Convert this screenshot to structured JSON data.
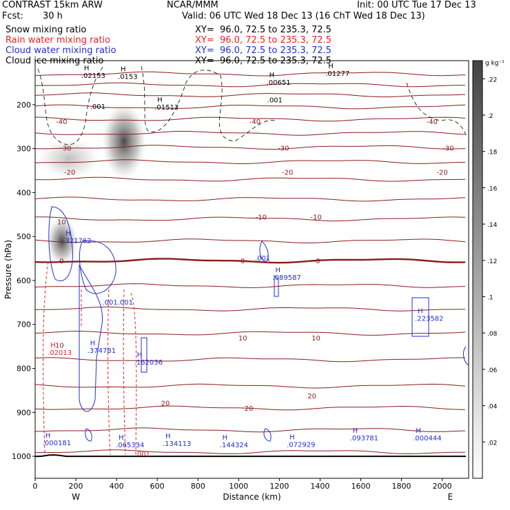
{
  "header": {
    "title": "CONTRAST 15km ARW",
    "center": "NCAR/MMM",
    "init": "Init: 00 UTC Tue 17 Dec 13",
    "fcst_label": "Fcst:",
    "fcst_value": "30 h",
    "valid": "Valid: 06 UTC Wed 18 Dec 13 (16 ChT Wed 18 Dec 13)"
  },
  "fields": [
    {
      "name": "Snow mixing ratio",
      "xy": "XY=  96.0, 72.5 to 235.3, 72.5",
      "color": "#000000"
    },
    {
      "name": "Rain water mixing ratio",
      "xy": "XY=  96.0, 72.5 to 235.3, 72.5",
      "color": "#e8231f"
    },
    {
      "name": "Cloud water mixing ratio",
      "xy": "XY=  96.0, 72.5 to 235.3, 72.5",
      "color": "#1f2ed6"
    },
    {
      "name": "Cloud ice mixing ratio",
      "xy": "XY=  96.0, 72.5 to 235.3, 72.5",
      "color": "#000000"
    }
  ],
  "colors": {
    "temperature": "#8b1a1a",
    "rain": "#e8231f",
    "cloud_water": "#1f2ed6",
    "ice": "#000000",
    "terrain": "#000000"
  },
  "chart_data": {
    "type": "cross-section",
    "xlabel": "Distance (km)",
    "ylabel": "Pressure (hPa)",
    "xlim": [
      0,
      2130
    ],
    "ylim": [
      1050,
      100
    ],
    "x_ticks": [
      0,
      200,
      400,
      600,
      800,
      1000,
      1200,
      1400,
      1600,
      1800,
      2000
    ],
    "y_ticks": [
      200,
      300,
      400,
      500,
      600,
      700,
      800,
      900,
      1000
    ],
    "side_labels": {
      "left": "W",
      "right": "E"
    },
    "colorbar": {
      "unit": "g kg⁻¹",
      "ticks": [
        ".02",
        ".04",
        ".06",
        ".08",
        ".1",
        ".12",
        ".14",
        ".16",
        ".18",
        ".2",
        ".22"
      ],
      "values": [
        0.02,
        0.04,
        0.06,
        0.08,
        0.1,
        0.12,
        0.14,
        0.16,
        0.18,
        0.2,
        0.22
      ]
    },
    "temperature_labels": [
      {
        "x": 130,
        "p": 238,
        "t": "-40"
      },
      {
        "x": 1080,
        "p": 238,
        "t": "-40"
      },
      {
        "x": 1950,
        "p": 238,
        "t": "-40"
      },
      {
        "x": 150,
        "p": 298,
        "t": "-30"
      },
      {
        "x": 1220,
        "p": 298,
        "t": "-30"
      },
      {
        "x": 2030,
        "p": 298,
        "t": "-30"
      },
      {
        "x": 170,
        "p": 353,
        "t": "-20"
      },
      {
        "x": 1240,
        "p": 353,
        "t": "-20"
      },
      {
        "x": 2000,
        "p": 353,
        "t": "-20"
      },
      {
        "x": 130,
        "p": 466,
        "t": "10"
      },
      {
        "x": 1110,
        "p": 455,
        "t": "-10"
      },
      {
        "x": 1380,
        "p": 455,
        "t": "-10"
      },
      {
        "x": 130,
        "p": 555,
        "t": "0"
      },
      {
        "x": 1020,
        "p": 555,
        "t": "0"
      },
      {
        "x": 1390,
        "p": 555,
        "t": "0"
      },
      {
        "x": 120,
        "p": 747,
        "t": "10"
      },
      {
        "x": 1020,
        "p": 730,
        "t": "10"
      },
      {
        "x": 1380,
        "p": 730,
        "t": "10"
      },
      {
        "x": 640,
        "p": 878,
        "t": "20"
      },
      {
        "x": 1050,
        "p": 890,
        "t": "20"
      },
      {
        "x": 1360,
        "p": 862,
        "t": "20"
      }
    ],
    "temperature_levels": [
      130,
      155,
      178,
      205,
      233,
      265,
      297,
      330,
      370,
      415,
      460,
      510,
      555,
      612,
      665,
      720,
      780,
      840,
      890,
      940,
      990
    ],
    "maxima": [
      {
        "x": 240,
        "p": 138,
        "value": ".02153",
        "color": "#000000"
      },
      {
        "x": 420,
        "p": 140,
        "value": ".0153",
        "color": "#000000"
      },
      {
        "x": 600,
        "p": 210,
        "value": ".01513",
        "color": "#000000"
      },
      {
        "x": 1150,
        "p": 153,
        "value": ".00651",
        "color": "#000000"
      },
      {
        "x": 1440,
        "p": 133,
        "value": ".01277",
        "color": "#000000"
      },
      {
        "x": 150,
        "p": 513,
        "value": ".321762",
        "color": "#1f2ed6"
      },
      {
        "x": 1180,
        "p": 597,
        "value": ".089587",
        "color": "#1f2ed6"
      },
      {
        "x": 1880,
        "p": 690,
        "value": ".223582",
        "color": "#1f2ed6"
      },
      {
        "x": 270,
        "p": 763,
        "value": ".374781",
        "color": "#1f2ed6"
      },
      {
        "x": 500,
        "p": 790,
        "value": ".162036",
        "color": "#1f2ed6"
      },
      {
        "x": 75,
        "p": 768,
        "value": ".02013",
        "color": "#e8231f"
      },
      {
        "x": 50,
        "p": 973,
        "value": ".000181",
        "color": "#1f2ed6"
      },
      {
        "x": 410,
        "p": 978,
        "value": ".065334",
        "color": "#1f2ed6"
      },
      {
        "x": 640,
        "p": 975,
        "value": ".134113",
        "color": "#1f2ed6"
      },
      {
        "x": 920,
        "p": 978,
        "value": ".144324",
        "color": "#1f2ed6"
      },
      {
        "x": 1250,
        "p": 977,
        "value": ".072929",
        "color": "#1f2ed6"
      },
      {
        "x": 1560,
        "p": 962,
        "value": ".093781",
        "color": "#1f2ed6"
      },
      {
        "x": 1870,
        "p": 962,
        "value": ".000444",
        "color": "#1f2ed6"
      }
    ],
    "small_labels": [
      {
        "x": 270,
        "p": 210,
        "t": ".001",
        "color": "#000000"
      },
      {
        "x": 1140,
        "p": 195,
        "t": ".001",
        "color": "#000000"
      },
      {
        "x": 1080,
        "p": 555,
        "t": ".001",
        "color": "#1f2ed6"
      },
      {
        "x": 330,
        "p": 655,
        "t": ".001.001",
        "color": "#1f2ed6"
      },
      {
        "x": 490,
        "p": 1000,
        "t": ".001",
        "color": "#e8231f"
      }
    ]
  }
}
